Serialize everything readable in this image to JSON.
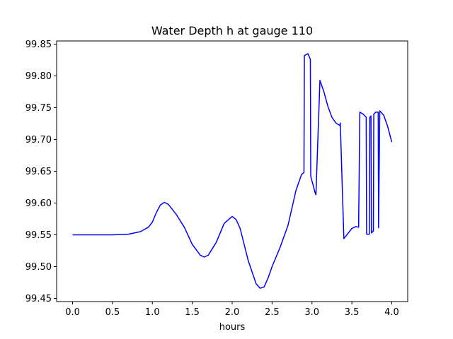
{
  "chart_data": {
    "type": "line",
    "title": "Water Depth h at gauge 110",
    "xlabel": "hours",
    "ylabel": "",
    "xlim": [
      -0.2,
      4.2
    ],
    "ylim": [
      99.445,
      99.855
    ],
    "x_ticks": [
      "0.0",
      "0.5",
      "1.0",
      "1.5",
      "2.0",
      "2.5",
      "3.0",
      "3.5",
      "4.0"
    ],
    "x_tick_values": [
      0.0,
      0.5,
      1.0,
      1.5,
      2.0,
      2.5,
      3.0,
      3.5,
      4.0
    ],
    "y_ticks": [
      "99.45",
      "99.50",
      "99.55",
      "99.60",
      "99.65",
      "99.70",
      "99.75",
      "99.80",
      "99.85"
    ],
    "y_tick_values": [
      99.45,
      99.5,
      99.55,
      99.6,
      99.65,
      99.7,
      99.75,
      99.8,
      99.85
    ],
    "grid": false,
    "series": [
      {
        "color": "#0000ff",
        "x": [
          0.0,
          0.3,
          0.5,
          0.7,
          0.85,
          0.95,
          1.0,
          1.05,
          1.1,
          1.15,
          1.2,
          1.3,
          1.4,
          1.5,
          1.6,
          1.65,
          1.7,
          1.8,
          1.9,
          2.0,
          2.05,
          2.1,
          2.2,
          2.3,
          2.35,
          2.4,
          2.45,
          2.5,
          2.6,
          2.7,
          2.8,
          2.87,
          2.9,
          2.905,
          2.95,
          2.98,
          2.985,
          3.04,
          3.05,
          3.1,
          3.15,
          3.2,
          3.25,
          3.3,
          3.35,
          3.355,
          3.4,
          3.45,
          3.5,
          3.55,
          3.58,
          3.585,
          3.6,
          3.64,
          3.68,
          3.685,
          3.72,
          3.725,
          3.74,
          3.745,
          3.77,
          3.775,
          3.8,
          3.83,
          3.835,
          3.85,
          3.9,
          3.95,
          4.0
        ],
        "y": [
          99.55,
          99.55,
          99.55,
          99.551,
          99.555,
          99.562,
          99.57,
          99.585,
          99.597,
          99.601,
          99.598,
          99.582,
          99.562,
          99.535,
          99.518,
          99.515,
          99.518,
          99.538,
          99.568,
          99.579,
          99.574,
          99.56,
          99.51,
          99.473,
          99.466,
          99.468,
          99.482,
          99.5,
          99.53,
          99.565,
          99.62,
          99.645,
          99.648,
          99.832,
          99.835,
          99.826,
          99.642,
          99.616,
          99.613,
          99.793,
          99.775,
          99.752,
          99.735,
          99.726,
          99.722,
          99.726,
          99.544,
          99.552,
          99.56,
          99.563,
          99.562,
          99.562,
          99.743,
          99.74,
          99.735,
          99.551,
          99.551,
          99.735,
          99.737,
          99.553,
          99.556,
          99.74,
          99.743,
          99.743,
          99.561,
          99.745,
          99.738,
          99.72,
          99.696
        ]
      }
    ]
  }
}
